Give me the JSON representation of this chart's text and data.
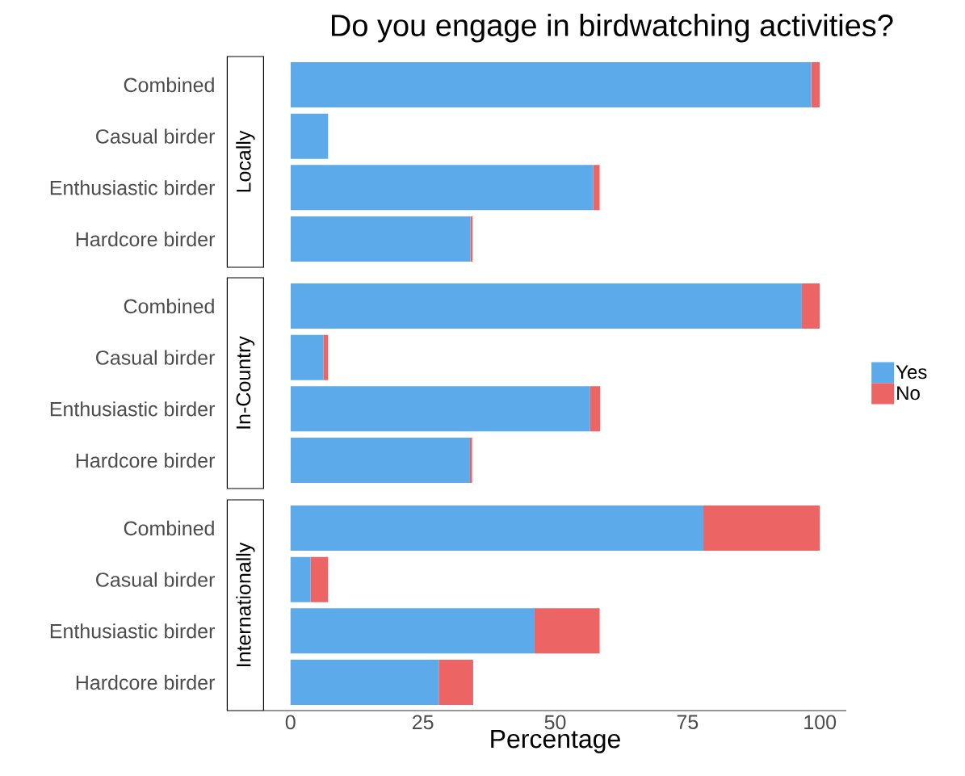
{
  "chart_data": [
    {
      "type": "bar",
      "orientation": "horizontal",
      "stacked": true,
      "title": "Do you engage in birdwatching activities?",
      "ylabel": "Locally",
      "categories": [
        "Combined",
        "Casual birder",
        "Enthusiastic birder",
        "Hardcore birder"
      ],
      "xlim": [
        0,
        100
      ],
      "xticks": [
        0,
        25,
        50,
        75,
        100
      ],
      "tick_labels": "y",
      "series": [
        {
          "color": "#5daaeb",
          "values": [
            98.4,
            7.1,
            57.2,
            34.0
          ]
        },
        {
          "color": "#ec6464",
          "values": [
            1.6,
            0,
            1.2,
            0.4
          ]
        }
      ]
    },
    {
      "type": "bar",
      "orientation": "horizontal",
      "stacked": true,
      "ylabel": "In-Country",
      "categories": [
        "Combined",
        "Casual birder",
        "Enthusiastic birder",
        "Hardcore birder"
      ],
      "xlim": [
        0,
        100
      ],
      "xticks": [
        0,
        25,
        50,
        75,
        100
      ],
      "tick_labels": "y",
      "legend": "right",
      "series": [
        {
          "name": "Yes",
          "color": "#5daaeb",
          "values": [
            96.6,
            6.2,
            56.6,
            33.9
          ]
        },
        {
          "name": "No",
          "color": "#ec6464",
          "values": [
            3.4,
            0.9,
            1.9,
            0.4
          ]
        }
      ]
    },
    {
      "type": "bar",
      "orientation": "horizontal",
      "stacked": true,
      "ylabel": "Internationally",
      "xlabel": "Percentage",
      "categories": [
        "Combined",
        "Casual birder",
        "Enthusiastic birder",
        "Hardcore birder"
      ],
      "xlim": [
        -5,
        105
      ],
      "xticks": [
        0,
        25,
        50,
        75,
        100
      ],
      "series": [
        {
          "color": "#5daaeb",
          "values": [
            78.0,
            3.8,
            46.1,
            28.0
          ]
        },
        {
          "color": "#ec6464",
          "values": [
            22.0,
            3.3,
            12.3,
            6.5
          ]
        }
      ]
    }
  ]
}
